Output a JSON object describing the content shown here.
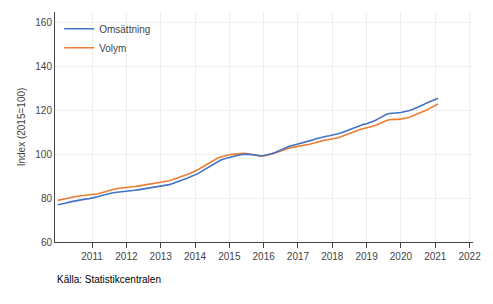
{
  "chart_data": {
    "type": "line",
    "ylabel": "Index (2015=100)",
    "source": "Källa: Statistikcentralen",
    "x": [
      2010.0,
      2010.0833333333333,
      2010.1666666666667,
      2010.25,
      2010.3333333333333,
      2010.4166666666667,
      2010.5,
      2010.5833333333333,
      2010.6666666666667,
      2010.75,
      2010.8333333333333,
      2010.9166666666667,
      2011.0,
      2011.0833333333333,
      2011.1666666666667,
      2011.25,
      2011.3333333333333,
      2011.4166666666667,
      2011.5,
      2011.5833333333333,
      2011.6666666666667,
      2011.75,
      2011.8333333333333,
      2011.9166666666667,
      2012.0,
      2012.0833333333333,
      2012.1666666666667,
      2012.25,
      2012.3333333333333,
      2012.4166666666667,
      2012.5,
      2012.5833333333333,
      2012.6666666666667,
      2012.75,
      2012.8333333333333,
      2012.9166666666667,
      2013.0,
      2013.0833333333333,
      2013.1666666666667,
      2013.25,
      2013.3333333333333,
      2013.4166666666667,
      2013.5,
      2013.5833333333333,
      2013.6666666666667,
      2013.75,
      2013.8333333333333,
      2013.9166666666667,
      2014.0,
      2014.0833333333333,
      2014.1666666666667,
      2014.25,
      2014.3333333333333,
      2014.4166666666667,
      2014.5,
      2014.5833333333333,
      2014.6666666666667,
      2014.75,
      2014.8333333333333,
      2014.9166666666667,
      2015.0,
      2015.0833333333333,
      2015.1666666666667,
      2015.25,
      2015.3333333333333,
      2015.4166666666667,
      2015.5,
      2015.5833333333333,
      2015.6666666666667,
      2015.75,
      2015.8333333333333,
      2015.9166666666667,
      2016.0,
      2016.0833333333333,
      2016.1666666666667,
      2016.25,
      2016.3333333333333,
      2016.4166666666667,
      2016.5,
      2016.5833333333333,
      2016.6666666666667,
      2016.75,
      2016.8333333333333,
      2016.9166666666667,
      2017.0,
      2017.0833333333333,
      2017.1666666666667,
      2017.25,
      2017.3333333333333,
      2017.4166666666667,
      2017.5,
      2017.5833333333333,
      2017.6666666666667,
      2017.75,
      2017.8333333333333,
      2017.9166666666667,
      2018.0,
      2018.0833333333333,
      2018.1666666666667,
      2018.25,
      2018.3333333333333,
      2018.4166666666667,
      2018.5,
      2018.5833333333333,
      2018.6666666666667,
      2018.75,
      2018.8333333333333,
      2018.9166666666667,
      2019.0,
      2019.0833333333333,
      2019.1666666666667,
      2019.25,
      2019.3333333333333,
      2019.4166666666667,
      2019.5,
      2019.5833333333333,
      2019.6666666666667,
      2019.75,
      2019.8333333333333,
      2019.9166666666667,
      2020.0,
      2020.0833333333333,
      2020.1666666666667,
      2020.25,
      2020.3333333333333,
      2020.4166666666667,
      2020.5,
      2020.5833333333333,
      2020.6666666666667,
      2020.75,
      2020.8333333333333,
      2020.9166666666667,
      2021.0,
      2021.0833333333333
    ],
    "series": [
      {
        "name": "Omsättning",
        "color": "#4472c4",
        "values": [
          77.0,
          77.2,
          77.5,
          77.8,
          78.2,
          78.5,
          78.8,
          79.1,
          79.3,
          79.5,
          79.7,
          79.8,
          80.0,
          80.3,
          80.7,
          81.1,
          81.5,
          81.8,
          82.1,
          82.4,
          82.6,
          82.7,
          82.8,
          82.9,
          83.0,
          83.2,
          83.4,
          83.6,
          83.8,
          84.0,
          84.3,
          84.6,
          84.8,
          85.0,
          85.1,
          85.2,
          85.3,
          85.5,
          85.8,
          86.2,
          86.6,
          87.0,
          87.5,
          88.0,
          88.5,
          89.0,
          89.5,
          90.0,
          90.5,
          91.2,
          92.0,
          92.8,
          93.7,
          94.5,
          95.3,
          96.1,
          96.8,
          97.4,
          97.9,
          98.3,
          98.7,
          99.0,
          99.3,
          99.6,
          99.8,
          100.0,
          100.1,
          100.0,
          99.8,
          99.6,
          99.5,
          99.4,
          99.5,
          99.7,
          100.0,
          100.4,
          100.9,
          101.5,
          102.1,
          102.7,
          103.2,
          103.7,
          104.1,
          104.4,
          104.7,
          105.0,
          105.3,
          105.7,
          106.1,
          106.5,
          107.0,
          107.4,
          107.8,
          108.1,
          108.3,
          108.5,
          108.7,
          109.0,
          109.4,
          109.8,
          110.3,
          110.8,
          111.4,
          112.0,
          112.5,
          113.0,
          113.4,
          113.7,
          114.0,
          114.4,
          114.9,
          115.5,
          116.2,
          117.0,
          117.7,
          118.3,
          118.7,
          118.9,
          119.0,
          119.0,
          119.1,
          119.3,
          119.6,
          120.0,
          120.5,
          121.0,
          121.6,
          122.2,
          122.8,
          123.5,
          124.1,
          124.7,
          125.2,
          125.6
        ]
      },
      {
        "name": "Volym",
        "color": "#ed7d31",
        "values": [
          79.0,
          79.2,
          79.5,
          79.8,
          80.1,
          80.4,
          80.7,
          80.9,
          81.1,
          81.2,
          81.3,
          81.4,
          81.5,
          81.7,
          82.0,
          82.4,
          82.8,
          83.2,
          83.6,
          83.9,
          84.2,
          84.4,
          84.5,
          84.6,
          84.7,
          84.9,
          85.1,
          85.3,
          85.5,
          85.7,
          86.0,
          86.3,
          86.6,
          86.8,
          86.9,
          87.0,
          87.1,
          87.3,
          87.6,
          88.0,
          88.4,
          88.8,
          89.2,
          89.7,
          90.2,
          90.7,
          91.2,
          91.7,
          92.2,
          93.0,
          93.8,
          94.6,
          95.4,
          96.2,
          97.0,
          97.7,
          98.3,
          98.8,
          99.2,
          99.5,
          99.8,
          100.0,
          100.2,
          100.3,
          100.4,
          100.5,
          100.4,
          100.2,
          99.9,
          99.6,
          99.3,
          99.2,
          99.3,
          99.5,
          99.8,
          100.2,
          100.6,
          101.1,
          101.6,
          102.1,
          102.5,
          102.9,
          103.2,
          103.4,
          103.6,
          103.8,
          104.0,
          104.3,
          104.6,
          105.0,
          105.4,
          105.8,
          106.1,
          106.4,
          106.6,
          106.8,
          107.0,
          107.3,
          107.6,
          108.0,
          108.5,
          109.0,
          109.6,
          110.2,
          110.7,
          111.2,
          111.5,
          111.8,
          112.0,
          112.3,
          112.7,
          113.2,
          113.8,
          114.4,
          115.0,
          115.5,
          115.8,
          116.0,
          116.0,
          116.0,
          116.1,
          116.3,
          116.6,
          117.0,
          117.5,
          118.0,
          118.5,
          119.1,
          119.7,
          120.3,
          121.0,
          121.7,
          122.3,
          123.0
        ]
      }
    ],
    "xlim": [
      2009.92,
      2022.1
    ],
    "xticks": [
      2011,
      2012,
      2013,
      2014,
      2015,
      2016,
      2017,
      2018,
      2019,
      2020,
      2021,
      2022
    ],
    "ylim": [
      60,
      165
    ],
    "yticks": [
      60,
      80,
      100,
      120,
      140,
      160
    ],
    "grid": true,
    "legend": "upper left"
  }
}
